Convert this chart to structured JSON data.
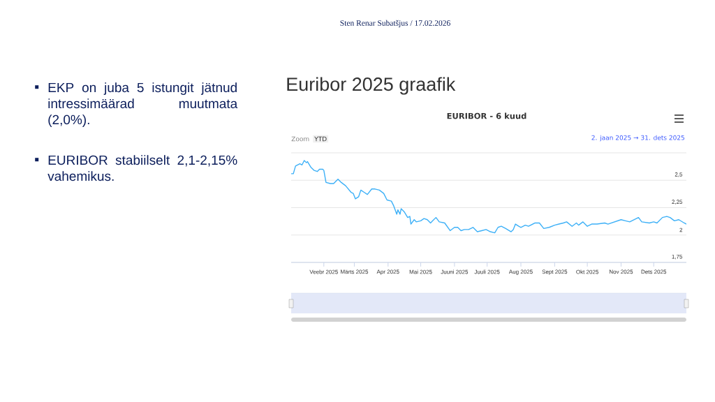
{
  "chart_data": {
    "type": "line",
    "title": "EURIBOR - 6 kuud",
    "annotations": [
      "Euribor 2025 graafik",
      "EKP on juba 5 istungit jätnud intressimäärad muutmata (2,0%).",
      "EURIBOR stabiilselt 2,1-2,15% vahemikus.",
      "Sten Renar Subatšjus / 17.02.2026",
      "Zoom",
      "YTD",
      "2. jaan 2025 → 31. dets 2025"
    ],
    "x": [
      "2025-01-02",
      "2025-01-04",
      "2025-01-06",
      "2025-01-10",
      "2025-01-12",
      "2025-01-14",
      "2025-01-16",
      "2025-01-17",
      "2025-01-20",
      "2025-01-23",
      "2025-01-26",
      "2025-01-28",
      "2025-01-31",
      "2025-02-01",
      "2025-02-03",
      "2025-02-07",
      "2025-02-10",
      "2025-02-14",
      "2025-02-17",
      "2025-02-21",
      "2025-02-26",
      "2025-02-28",
      "2025-03-02",
      "2025-03-05",
      "2025-03-07",
      "2025-03-10",
      "2025-03-13",
      "2025-03-17",
      "2025-03-20",
      "2025-03-24",
      "2025-03-28",
      "2025-03-31",
      "2025-04-04",
      "2025-04-06",
      "2025-04-09",
      "2025-04-10",
      "2025-04-12",
      "2025-04-13",
      "2025-04-16",
      "2025-04-19",
      "2025-04-21",
      "2025-04-22",
      "2025-04-25",
      "2025-04-27",
      "2025-05-01",
      "2025-05-04",
      "2025-05-07",
      "2025-05-10",
      "2025-05-12",
      "2025-05-15",
      "2025-05-18",
      "2025-05-23",
      "2025-05-28",
      "2025-06-01",
      "2025-06-04",
      "2025-06-07",
      "2025-06-10",
      "2025-06-14",
      "2025-06-18",
      "2025-06-22",
      "2025-06-26",
      "2025-06-30",
      "2025-07-04",
      "2025-07-08",
      "2025-07-11",
      "2025-07-14",
      "2025-07-18",
      "2025-07-23",
      "2025-07-25",
      "2025-07-27",
      "2025-07-30",
      "2025-08-01",
      "2025-08-05",
      "2025-08-08",
      "2025-08-14",
      "2025-08-18",
      "2025-08-22",
      "2025-08-27",
      "2025-09-01",
      "2025-09-05",
      "2025-09-09",
      "2025-09-12",
      "2025-09-17",
      "2025-09-21",
      "2025-09-23",
      "2025-09-27",
      "2025-10-01",
      "2025-10-05",
      "2025-10-10",
      "2025-10-17",
      "2025-10-20",
      "2025-10-26",
      "2025-11-01",
      "2025-11-05",
      "2025-11-09",
      "2025-11-13",
      "2025-11-17",
      "2025-11-20",
      "2025-11-27",
      "2025-12-01",
      "2025-12-04",
      "2025-12-09",
      "2025-12-13",
      "2025-12-16",
      "2025-12-20",
      "2025-12-24",
      "2025-12-29",
      "2025-12-31"
    ],
    "values": [
      2.56,
      2.56,
      2.63,
      2.65,
      2.64,
      2.68,
      2.66,
      2.67,
      2.62,
      2.59,
      2.58,
      2.6,
      2.6,
      2.59,
      2.48,
      2.47,
      2.47,
      2.51,
      2.48,
      2.45,
      2.39,
      2.38,
      2.33,
      2.35,
      2.41,
      2.39,
      2.37,
      2.42,
      2.42,
      2.41,
      2.38,
      2.32,
      2.31,
      2.27,
      2.19,
      2.23,
      2.19,
      2.24,
      2.21,
      2.16,
      2.17,
      2.1,
      2.14,
      2.12,
      2.13,
      2.15,
      2.14,
      2.11,
      2.13,
      2.16,
      2.12,
      2.11,
      2.04,
      2.07,
      2.07,
      2.04,
      2.05,
      2.05,
      2.07,
      2.03,
      2.04,
      2.05,
      2.03,
      2.02,
      2.07,
      2.08,
      2.06,
      2.03,
      2.05,
      2.1,
      2.08,
      2.07,
      2.09,
      2.08,
      2.11,
      2.11,
      2.06,
      2.07,
      2.09,
      2.1,
      2.11,
      2.12,
      2.08,
      2.11,
      2.09,
      2.12,
      2.08,
      2.1,
      2.1,
      2.11,
      2.1,
      2.12,
      2.14,
      2.13,
      2.12,
      2.14,
      2.16,
      2.12,
      2.11,
      2.12,
      2.11,
      2.16,
      2.17,
      2.16,
      2.13,
      2.14,
      2.11,
      2.1
    ],
    "color": "#3db0f7",
    "xlim": [
      "2025-01-02",
      "2025-12-31"
    ],
    "xticks": [
      {
        "value": "2025-02-01",
        "label": "Veebr 2025"
      },
      {
        "value": "2025-03-01",
        "label": "Märts 2025"
      },
      {
        "value": "2025-04-01",
        "label": "Apr 2025"
      },
      {
        "value": "2025-05-01",
        "label": "Mai 2025"
      },
      {
        "value": "2025-06-01",
        "label": "Juuni 2025"
      },
      {
        "value": "2025-07-01",
        "label": "Juuli 2025"
      },
      {
        "value": "2025-08-01",
        "label": "Aug 2025"
      },
      {
        "value": "2025-09-01",
        "label": "Sept 2025"
      },
      {
        "value": "2025-10-01",
        "label": "Okt 2025"
      },
      {
        "value": "2025-11-01",
        "label": "Nov 2025"
      },
      {
        "value": "2025-12-01",
        "label": "Dets 2025"
      }
    ],
    "ylim": [
      1.75,
      2.75
    ],
    "yticks": [
      {
        "value": 1.75,
        "label": "1,75"
      },
      {
        "value": 2,
        "label": "2"
      },
      {
        "value": 2.25,
        "label": "2,25"
      },
      {
        "value": 2.5,
        "label": "2,5"
      },
      {
        "value": 2.75,
        "label": null
      }
    ],
    "grid": "y",
    "marker": "none",
    "line_style": "solid"
  }
}
